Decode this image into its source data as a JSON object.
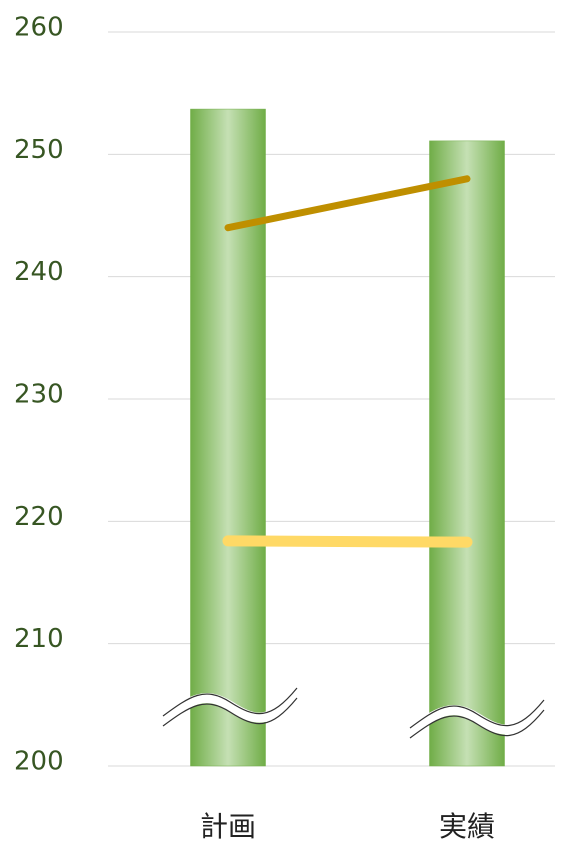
{
  "chart_data": {
    "type": "bar",
    "categories": [
      "計画",
      "実績"
    ],
    "series": [
      {
        "type": "bar",
        "color": "#70ad47",
        "values": [
          253.7,
          251.1
        ]
      },
      {
        "type": "line",
        "color": "#bf8f00",
        "values": [
          244,
          248
        ]
      },
      {
        "type": "line",
        "color": "#ffd966",
        "values": [
          218.4,
          218.3
        ]
      }
    ],
    "ylim": [
      200,
      260
    ],
    "yticks": [
      200,
      210,
      220,
      230,
      240,
      250,
      260
    ],
    "grid": true
  }
}
